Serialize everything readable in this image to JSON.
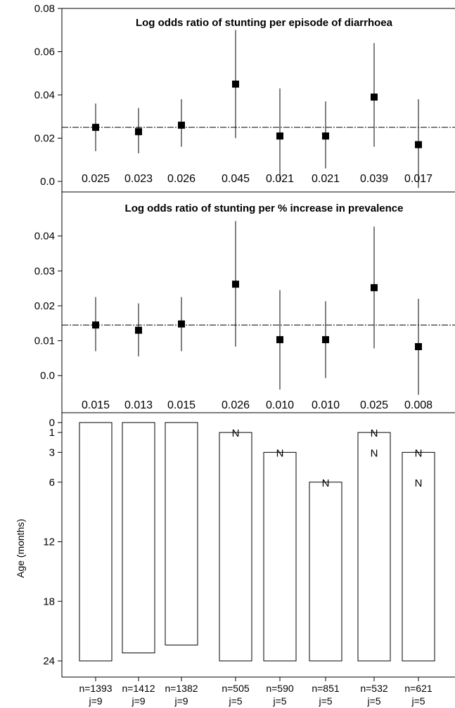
{
  "chart_data": [
    {
      "type": "scatter",
      "title": "Log odds ratio of stunting per episode of diarrhoea",
      "ylim": [
        0.0,
        0.08
      ],
      "yticks": [
        "0.08",
        "0.06",
        "0.04",
        "0.02",
        "0.0"
      ],
      "ytick_values": [
        0.08,
        0.06,
        0.04,
        0.02,
        0.0
      ],
      "reference_line": 0.025,
      "points": [
        {
          "estimate": 0.025,
          "lower": 0.014,
          "upper": 0.036,
          "label": "0.025"
        },
        {
          "estimate": 0.023,
          "lower": 0.013,
          "upper": 0.034,
          "label": "0.023"
        },
        {
          "estimate": 0.026,
          "lower": 0.016,
          "upper": 0.038,
          "label": "0.026"
        },
        {
          "estimate": 0.045,
          "lower": 0.02,
          "upper": 0.07,
          "label": "0.045"
        },
        {
          "estimate": 0.021,
          "lower": 0.0,
          "upper": 0.043,
          "label": "0.021"
        },
        {
          "estimate": 0.021,
          "lower": 0.006,
          "upper": 0.037,
          "label": "0.021"
        },
        {
          "estimate": 0.039,
          "lower": 0.016,
          "upper": 0.064,
          "label": "0.039"
        },
        {
          "estimate": 0.017,
          "lower": -0.003,
          "upper": 0.038,
          "label": "0.017"
        }
      ]
    },
    {
      "type": "scatter",
      "title": "Log odds ratio of stunting per % increase in prevalence",
      "ylim": [
        -0.006,
        0.048
      ],
      "yticks": [
        "0.04",
        "0.03",
        "0.02",
        "0.01",
        "0.0"
      ],
      "ytick_values": [
        0.04,
        0.03,
        0.02,
        0.01,
        0.0
      ],
      "reference_line": 0.0145,
      "points": [
        {
          "estimate": 0.0145,
          "lower": 0.007,
          "upper": 0.0225,
          "label": "0.015"
        },
        {
          "estimate": 0.013,
          "lower": 0.0055,
          "upper": 0.0207,
          "label": "0.013"
        },
        {
          "estimate": 0.0148,
          "lower": 0.007,
          "upper": 0.0225,
          "label": "0.015"
        },
        {
          "estimate": 0.0262,
          "lower": 0.0083,
          "upper": 0.0443,
          "label": "0.026"
        },
        {
          "estimate": 0.0103,
          "lower": -0.004,
          "upper": 0.0245,
          "label": "0.010"
        },
        {
          "estimate": 0.0103,
          "lower": -0.0007,
          "upper": 0.0213,
          "label": "0.010"
        },
        {
          "estimate": 0.0252,
          "lower": 0.0078,
          "upper": 0.0427,
          "label": "0.025"
        },
        {
          "estimate": 0.0083,
          "lower": -0.0055,
          "upper": 0.022,
          "label": "0.008"
        }
      ]
    },
    {
      "type": "bar",
      "ylabel": "Age (months)",
      "ylim": [
        0,
        24
      ],
      "yticks": [
        "0",
        "1",
        "3",
        "6",
        "12",
        "18",
        "24"
      ],
      "ytick_values": [
        0,
        1,
        3,
        6,
        12,
        18,
        24
      ],
      "bars": [
        {
          "start": 0,
          "end": 24,
          "n_marks": []
        },
        {
          "start": 0,
          "end": 23.2,
          "n_marks": []
        },
        {
          "start": 0,
          "end": 22.4,
          "n_marks": []
        },
        {
          "start": 1,
          "end": 24,
          "n_marks": [
            {
              "text": "N",
              "age": 1
            }
          ]
        },
        {
          "start": 3,
          "end": 24,
          "n_marks": [
            {
              "text": "N",
              "age": 3
            }
          ]
        },
        {
          "start": 6,
          "end": 24,
          "n_marks": [
            {
              "text": "N",
              "age": 6
            }
          ]
        },
        {
          "start": 1,
          "end": 24,
          "n_marks": [
            {
              "text": "N",
              "age": 1
            },
            {
              "text": "N",
              "age": 3
            }
          ]
        },
        {
          "start": 3,
          "end": 24,
          "n_marks": [
            {
              "text": "N",
              "age": 3
            },
            {
              "text": "N",
              "age": 6
            }
          ]
        }
      ],
      "samples": [
        {
          "n": "n=1393",
          "j": "j=9"
        },
        {
          "n": "n=1412",
          "j": "j=9"
        },
        {
          "n": "n=1382",
          "j": "j=9"
        },
        {
          "n": "n=505",
          "j": "j=5"
        },
        {
          "n": "n=590",
          "j": "j=5"
        },
        {
          "n": "n=851",
          "j": "j=5"
        },
        {
          "n": "n=532",
          "j": "j=5"
        },
        {
          "n": "n=621",
          "j": "j=5"
        }
      ]
    }
  ]
}
